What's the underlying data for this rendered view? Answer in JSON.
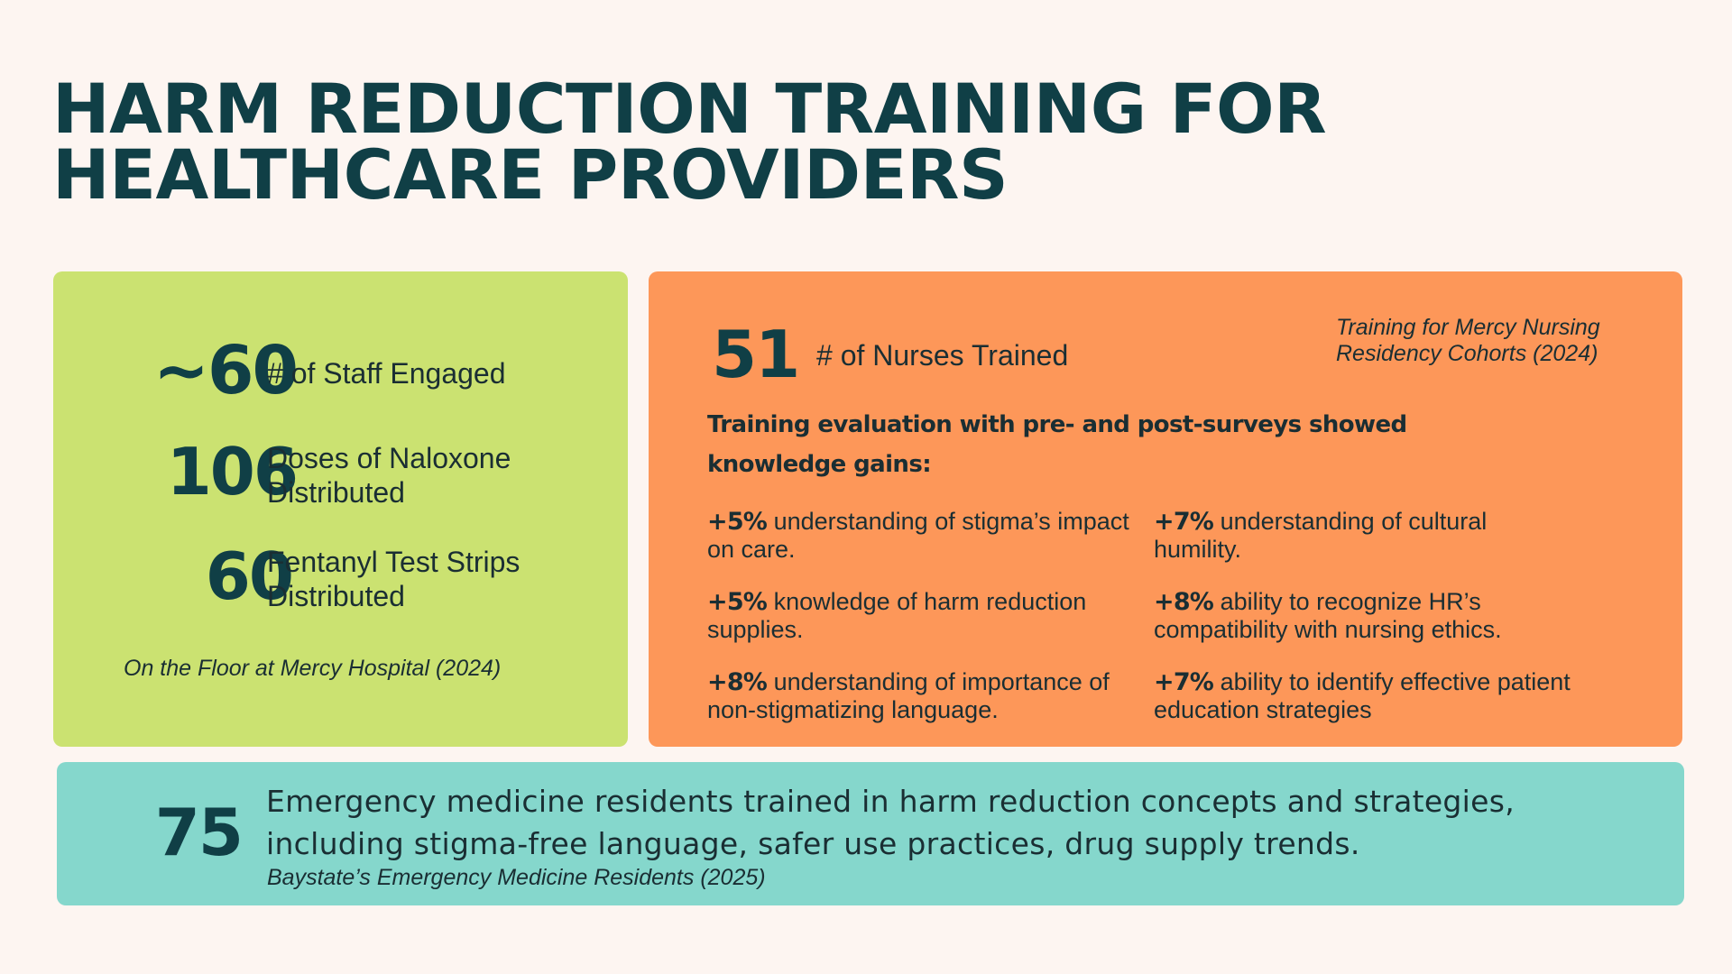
{
  "title": {
    "line1": "HARM REDUCTION TRAINING FOR",
    "line2": "HEALTHCARE PROVIDERS"
  },
  "floor": {
    "stats": [
      {
        "value": "~60",
        "label": "# of Staff Engaged"
      },
      {
        "value": "106",
        "label_line1": "Doses of Naloxone",
        "label_line2": "Distributed"
      },
      {
        "value": "60",
        "label_line1": "Fentanyl Test Strips",
        "label_line2": "Distributed"
      }
    ],
    "note": "On the Floor at Mercy Hospital (2024)",
    "color": "#cbe271"
  },
  "nursing": {
    "value": "51",
    "label": "# of Nurses Trained",
    "note_line1": "Training for Mercy Nursing",
    "note_line2": "Residency Cohorts (2024)",
    "heading_line1": "Training evaluation with pre- and post-surveys showed",
    "heading_line2": "knowledge gains:",
    "gains": [
      {
        "pct": "+5%",
        "text": " understanding of stigma’s impact on care."
      },
      {
        "pct": "+7%",
        "text": " understanding of cultural humility."
      },
      {
        "pct": "+5%",
        "text": " knowledge of harm reduction supplies."
      },
      {
        "pct": "+8%",
        "text": " ability to recognize HR’s compatibility with nursing ethics."
      },
      {
        "pct": "+8%",
        "text": " understanding of importance of non-stigmatizing language."
      },
      {
        "pct": "+7%",
        "text": " ability to identify effective patient education strategies"
      }
    ],
    "color": "#fd9759"
  },
  "emergency": {
    "value": "75",
    "text": "Emergency medicine residents trained in harm reduction concepts and strategies, including stigma-free language, safer use practices, drug supply trends.",
    "note": "Baystate’s Emergency Medicine Residents (2025)",
    "color": "#85d7cc"
  }
}
